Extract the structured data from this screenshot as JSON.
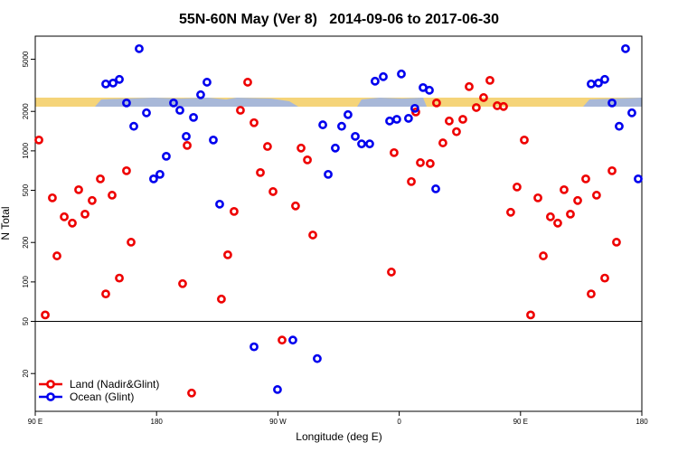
{
  "chart_data": {
    "type": "scatter",
    "title": "55N-60N May (Ver 8)   2014-09-06 to 2017-06-30",
    "x_label": "Longitude (deg E)",
    "y_label": "N Total",
    "xlim": [
      90,
      540
    ],
    "xticks": [
      {
        "value": 90,
        "label": "90 E"
      },
      180,
      {
        "value": 270,
        "label": "90 W"
      },
      {
        "value": 360,
        "label": "0"
      },
      {
        "value": 450,
        "label": "90 E"
      },
      {
        "value": 540,
        "label": "180"
      }
    ],
    "ylim": [
      10.3,
      7500
    ],
    "ylog": true,
    "yticks": [
      20,
      50,
      100,
      200,
      500,
      1000,
      2000,
      5000
    ],
    "reference_line": 50,
    "legend": "lower left",
    "series": [
      {
        "name": "Land (Nadir&Glint)",
        "color": "#ee0000",
        "x": [
          92.7,
          97.4,
          102.7,
          106.1,
          111.5,
          117.5,
          122.2,
          126.9,
          132.2,
          138.3,
          142.3,
          147.0,
          152.4,
          157.7,
          161.1,
          199.3,
          202.7,
          206.0,
          228.1,
          232.8,
          237.5,
          242.2,
          247.6,
          252.3,
          257.0,
          262.3,
          266.4,
          273.1,
          283.1,
          287.2,
          291.9,
          295.9,
          354.2,
          356.2,
          369.0,
          372.3,
          375.7,
          383.0,
          387.7,
          392.4,
          397.1,
          402.5,
          407.2,
          411.9,
          417.2,
          422.6,
          427.3,
          432.7,
          437.4,
          442.7,
          447.4,
          452.8,
          457.5,
          462.9,
          466.9,
          472.2,
          477.6,
          482.3,
          487.0,
          492.4,
          498.4,
          502.4,
          506.4,
          512.5,
          517.9,
          521.2
        ],
        "values": [
          1210,
          56,
          438,
          158,
          314,
          281,
          505,
          329,
          418,
          611,
          81,
          459,
          107,
          705,
          201,
          97,
          1100,
          14.2,
          74,
          161,
          345,
          2040,
          3340,
          1640,
          683,
          1080,
          489,
          36,
          380,
          1050,
          853,
          228,
          119,
          969,
          583,
          1980,
          813,
          800,
          2320,
          1150,
          1690,
          1400,
          1740,
          3090,
          2140,
          2550,
          3450,
          2210,
          2180,
          340,
          530,
          1210,
          56,
          438,
          158,
          314,
          281,
          505,
          329,
          418,
          611,
          81,
          459,
          107,
          705,
          201
        ]
      },
      {
        "name": "Ocean (Glint)",
        "color": "#0000ee",
        "x": [
          142.3,
          147.7,
          152.4,
          157.7,
          163.1,
          167.1,
          172.5,
          177.8,
          182.5,
          187.2,
          192.6,
          197.3,
          202.0,
          207.4,
          212.7,
          217.4,
          222.1,
          226.8,
          252.3,
          269.7,
          281.1,
          299.2,
          303.3,
          307.3,
          312.6,
          317.3,
          322.0,
          327.4,
          332.1,
          338.1,
          342.1,
          348.2,
          352.9,
          358.2,
          361.6,
          366.9,
          371.6,
          377.7,
          382.4,
          387.1,
          502.4,
          507.8,
          512.5,
          517.9,
          523.2,
          527.9,
          532.6,
          537.3
        ],
        "values": [
          3240,
          3290,
          3510,
          2320,
          1540,
          6020,
          1950,
          611,
          662,
          909,
          2320,
          2040,
          1290,
          1800,
          2680,
          3340,
          1210,
          392,
          32,
          15.1,
          36,
          26,
          1580,
          662,
          1050,
          1540,
          1890,
          1290,
          1130,
          1130,
          3400,
          3680,
          1690,
          1740,
          3860,
          1770,
          2110,
          3040,
          2900,
          513,
          3240,
          3290,
          3510,
          2320,
          1540,
          6020,
          1950,
          611
        ]
      }
    ]
  }
}
